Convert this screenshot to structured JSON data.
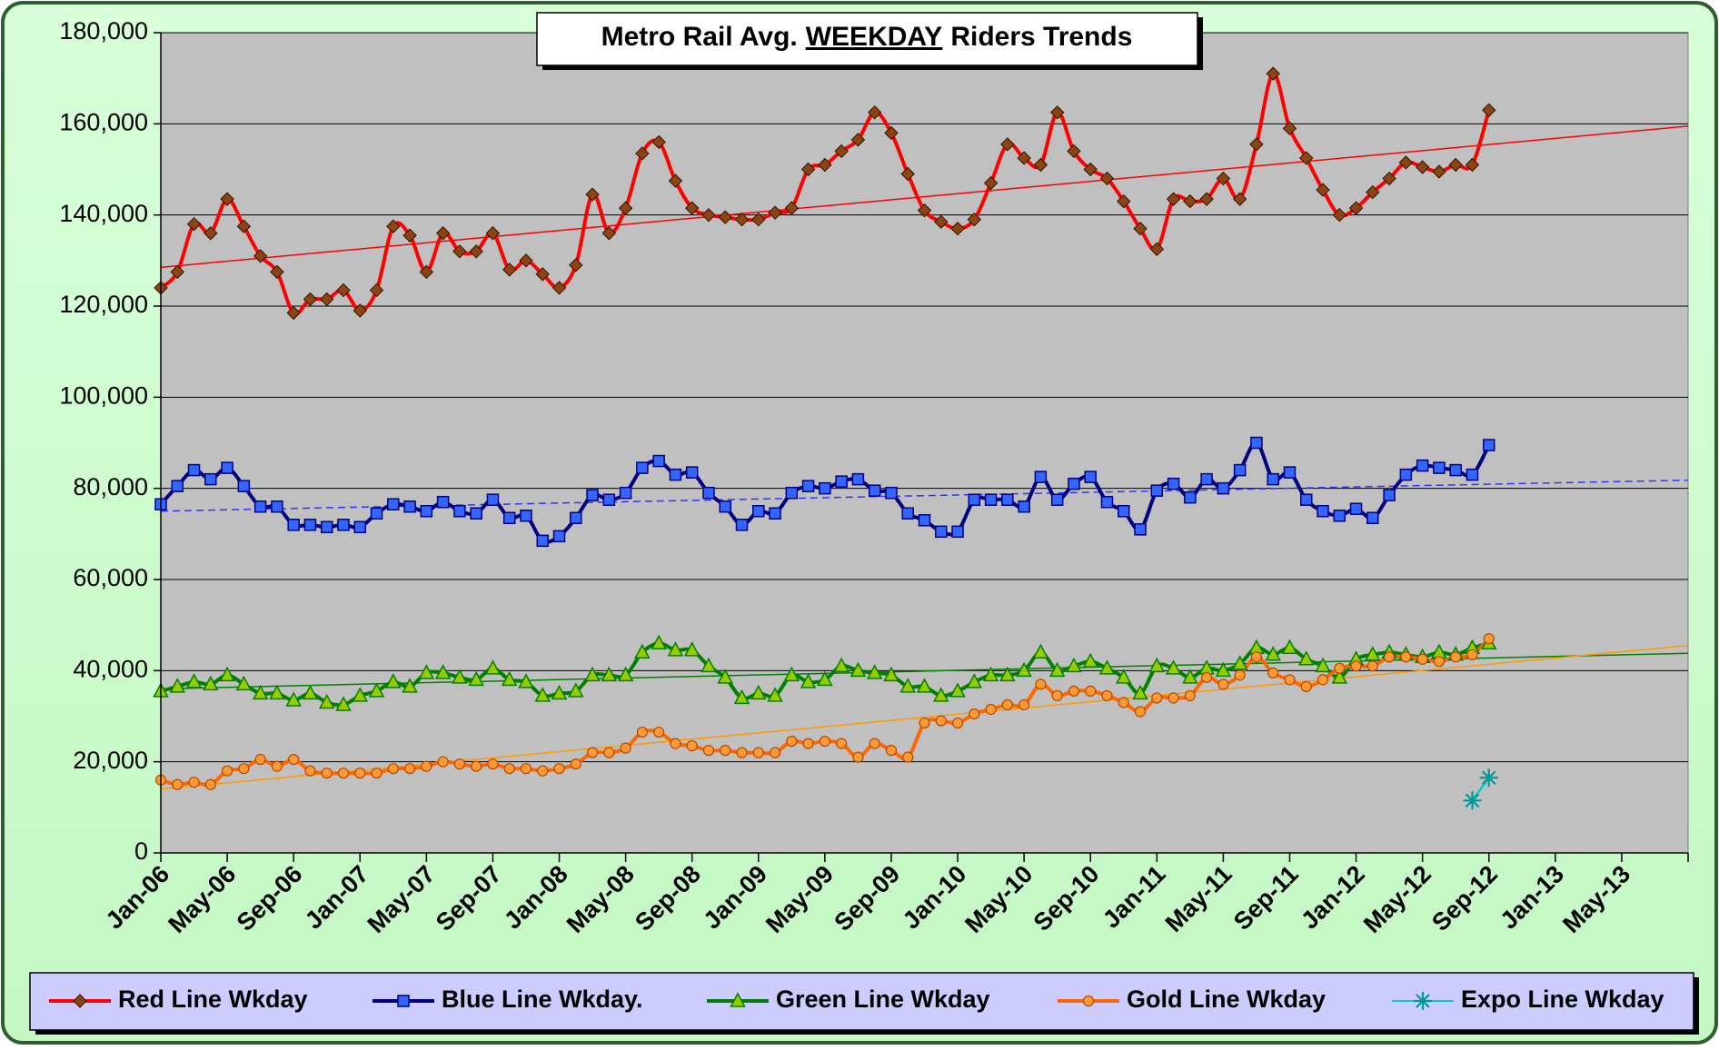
{
  "chart_data": {
    "type": "line",
    "title": {
      "before": "Metro Rail Avg.",
      "underlined": "WEEKDAY",
      "after": "Riders Trends"
    },
    "categories": [
      "Jan-06",
      null,
      null,
      null,
      "May-06",
      null,
      null,
      null,
      "Sep-06",
      null,
      null,
      null,
      "Jan-07",
      null,
      null,
      null,
      "May-07",
      null,
      null,
      null,
      "Sep-07",
      null,
      null,
      null,
      "Jan-08",
      null,
      null,
      null,
      "May-08",
      null,
      null,
      null,
      "Sep-08",
      null,
      null,
      null,
      "Jan-09",
      null,
      null,
      null,
      "May-09",
      null,
      null,
      null,
      "Sep-09",
      null,
      null,
      null,
      "Jan-10",
      null,
      null,
      null,
      "May-10",
      null,
      null,
      null,
      "Sep-10",
      null,
      null,
      null,
      "Jan-11",
      null,
      null,
      null,
      "May-11",
      null,
      null,
      null,
      "Sep-11",
      null,
      null,
      null,
      "Jan-12",
      null,
      null,
      null,
      "May-12",
      null,
      null,
      null,
      "Sep-12",
      null,
      null,
      null,
      "Jan-13",
      null,
      null,
      null,
      "May-13",
      null,
      null,
      null,
      null
    ],
    "ylim": [
      0,
      180000
    ],
    "yticks": [
      0,
      {
        "value": 20000,
        "label": "20,000"
      },
      {
        "value": 40000,
        "label": "40,000"
      },
      {
        "value": 60000,
        "label": "60,000"
      },
      {
        "value": 80000,
        "label": "80,000"
      },
      {
        "value": 100000,
        "label": "100,000"
      },
      {
        "value": 120000,
        "label": "120,000"
      },
      {
        "value": 140000,
        "label": "140,000"
      },
      {
        "value": 160000,
        "label": "160,000"
      },
      {
        "value": 180000,
        "label": "180,000"
      }
    ],
    "grid": true,
    "legend": "bottom",
    "series": [
      {
        "name": "Red Line Wkday",
        "color": "#ff0000",
        "marker": "diamond",
        "marker_color": "#8b4513",
        "trend": [
          128500,
          159500
        ],
        "trend_color": "#ff0000",
        "values": [
          124000,
          127500,
          138000,
          136000,
          143500,
          137500,
          131000,
          127500,
          118500,
          121500,
          121500,
          123500,
          119000,
          123500,
          137500,
          135500,
          127500,
          136000,
          132000,
          132000,
          136000,
          128000,
          130000,
          127000,
          124000,
          129000,
          144500,
          136000,
          141500,
          153500,
          156000,
          147500,
          141500,
          140000,
          139500,
          139000,
          139000,
          140500,
          141500,
          150000,
          151000,
          154000,
          156500,
          162500,
          158000,
          149000,
          141000,
          138500,
          137000,
          139000,
          147000,
          155500,
          152500,
          151000,
          162500,
          154000,
          150000,
          148000,
          143000,
          137000,
          132500,
          143500,
          143000,
          143500,
          148000,
          143500,
          155500,
          171000,
          159000,
          152500,
          145500,
          140000,
          141500,
          145000,
          148000,
          151500,
          150500,
          149500,
          151000,
          151000,
          163000,
          null,
          null,
          null,
          null,
          null,
          null,
          null,
          null,
          null,
          null,
          null,
          null
        ]
      },
      {
        "name": "Blue Line Wkday.",
        "color": "#000080",
        "marker": "square",
        "marker_color": "#3366ff",
        "trend": [
          75000,
          81800
        ],
        "trend_color": "#3333ff",
        "values": [
          76500,
          80500,
          84000,
          82000,
          84500,
          80500,
          76000,
          76000,
          72000,
          72000,
          71500,
          72000,
          71500,
          74500,
          76500,
          76000,
          75000,
          77000,
          75000,
          74500,
          77500,
          73500,
          74000,
          68500,
          69500,
          73500,
          78500,
          77500,
          79000,
          84500,
          86000,
          83000,
          83500,
          79000,
          76000,
          72000,
          75000,
          74500,
          79000,
          80500,
          80000,
          81500,
          82000,
          79500,
          79000,
          74500,
          73000,
          70500,
          70500,
          77500,
          77500,
          77500,
          76000,
          82500,
          77500,
          81000,
          82500,
          77000,
          75000,
          71000,
          79500,
          81000,
          78000,
          82000,
          80000,
          84000,
          90000,
          82000,
          83500,
          77500,
          75000,
          74000,
          75500,
          73500,
          78500,
          83000,
          85000,
          84500,
          84000,
          83000,
          89500,
          null,
          null,
          null,
          null,
          null,
          null,
          null,
          null,
          null,
          null,
          null,
          null
        ]
      },
      {
        "name": "Green Line Wkday",
        "color": "#008000",
        "marker": "triangle",
        "marker_color": "#99cc00",
        "trend": [
          36000,
          43800
        ],
        "trend_color": "#008000",
        "values": [
          35500,
          36500,
          37500,
          37000,
          39000,
          37000,
          35000,
          35000,
          33500,
          35000,
          33000,
          32500,
          34500,
          35500,
          37500,
          36500,
          39500,
          39500,
          38500,
          38000,
          40500,
          38000,
          37500,
          34500,
          35000,
          35500,
          39000,
          39000,
          39000,
          44000,
          46000,
          44500,
          44500,
          41000,
          38500,
          34000,
          35000,
          34500,
          39000,
          37500,
          38000,
          41000,
          40000,
          39500,
          39000,
          36500,
          36500,
          34500,
          35500,
          37500,
          39000,
          39000,
          40000,
          44000,
          40000,
          41000,
          42000,
          40500,
          38500,
          35000,
          41000,
          40500,
          38500,
          40500,
          40000,
          41500,
          45000,
          43500,
          45000,
          42500,
          41000,
          38500,
          42500,
          43500,
          44000,
          43500,
          43000,
          44000,
          43500,
          45000,
          46000,
          null,
          null,
          null,
          null,
          null,
          null,
          null,
          null,
          null,
          null,
          null,
          null
        ]
      },
      {
        "name": "Gold Line Wkday",
        "color": "#ff6600",
        "marker": "circle",
        "marker_color": "#ff9933",
        "trend": [
          14000,
          45500
        ],
        "trend_color": "#ff9900",
        "values": [
          16000,
          15000,
          15500,
          15000,
          18000,
          18500,
          20500,
          19000,
          20500,
          18000,
          17500,
          17500,
          17500,
          17500,
          18500,
          18500,
          19000,
          20000,
          19500,
          19000,
          19500,
          18500,
          18500,
          18000,
          18500,
          19500,
          22000,
          22000,
          23000,
          26500,
          26500,
          24000,
          23500,
          22500,
          22500,
          22000,
          22000,
          22000,
          24500,
          24000,
          24500,
          24000,
          21000,
          24000,
          22500,
          21000,
          28500,
          29000,
          28500,
          30500,
          31500,
          32500,
          32500,
          37000,
          34500,
          35500,
          35500,
          34500,
          33000,
          31000,
          34000,
          34000,
          34500,
          38500,
          37000,
          39000,
          43000,
          39500,
          38000,
          36500,
          38000,
          40500,
          41000,
          41000,
          43000,
          43000,
          42500,
          42000,
          43000,
          43500,
          47000,
          null,
          null,
          null,
          null,
          null,
          null,
          null,
          null,
          null,
          null,
          null,
          null
        ]
      },
      {
        "name": "Expo Line Wkday",
        "color": "#00cccc",
        "marker": "asterisk",
        "marker_color": "#009999",
        "values": [
          null,
          null,
          null,
          null,
          null,
          null,
          null,
          null,
          null,
          null,
          null,
          null,
          null,
          null,
          null,
          null,
          null,
          null,
          null,
          null,
          null,
          null,
          null,
          null,
          null,
          null,
          null,
          null,
          null,
          null,
          null,
          null,
          null,
          null,
          null,
          null,
          null,
          null,
          null,
          null,
          null,
          null,
          null,
          null,
          null,
          null,
          null,
          null,
          null,
          null,
          null,
          null,
          null,
          null,
          null,
          null,
          null,
          null,
          null,
          null,
          null,
          null,
          null,
          null,
          null,
          null,
          null,
          null,
          null,
          null,
          null,
          null,
          null,
          null,
          null,
          null,
          null,
          null,
          null,
          11500,
          16500,
          null,
          null,
          null,
          null,
          null,
          null,
          null,
          null,
          null,
          null,
          null,
          null
        ]
      }
    ]
  }
}
